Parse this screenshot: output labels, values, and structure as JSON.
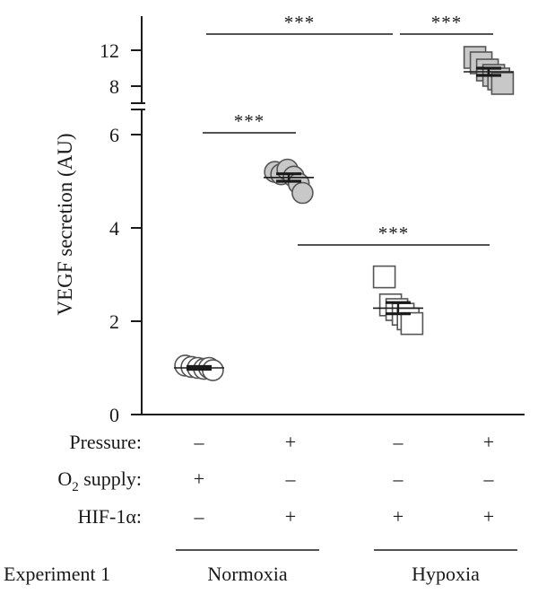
{
  "chart_data": {
    "type": "scatter",
    "ylabel": "VEGF secretion (AU)",
    "y_axis": {
      "broken": true,
      "lower_ticks": [
        "0",
        "2",
        "4",
        "6"
      ],
      "upper_ticks": [
        "8",
        "12"
      ],
      "lower_range": [
        0,
        6
      ],
      "upper_range": [
        7,
        13
      ]
    },
    "groups": [
      {
        "marker": "circle",
        "fill": "#ffffff",
        "points": [
          1.05,
          1.02,
          1.0,
          0.98,
          1.0,
          0.95
        ],
        "mean": 1.0,
        "error": 0.03
      },
      {
        "marker": "circle",
        "fill": "#c8c8c8",
        "points": [
          5.2,
          5.15,
          5.25,
          5.1,
          4.95,
          4.75
        ],
        "mean": 5.08,
        "error": 0.08
      },
      {
        "marker": "square",
        "fill": "#ffffff",
        "points": [
          2.95,
          2.35,
          2.25,
          2.15,
          2.05,
          1.95
        ],
        "mean": 2.28,
        "error": 0.12
      },
      {
        "marker": "square",
        "fill": "#c8c8c8",
        "points": [
          11.2,
          10.6,
          9.8,
          9.2,
          8.8,
          8.3
        ],
        "mean": 9.6,
        "error": 0.4
      }
    ],
    "significance": [
      {
        "from": 1,
        "to": 2,
        "label": "***",
        "level": 6.0
      },
      {
        "from": 2,
        "to": 4,
        "label": "***",
        "level": 3.6
      },
      {
        "from": 2,
        "to": 3,
        "label": "***",
        "level": 13.5
      },
      {
        "from": 3,
        "to": 4,
        "label": "***",
        "level": 13.5
      }
    ]
  },
  "conditions": {
    "rows": [
      {
        "label": "Pressure:",
        "values": [
          "–",
          "+",
          "–",
          "+"
        ]
      },
      {
        "label_main": "O",
        "label_sub": "2",
        "label_rest": " supply:",
        "values": [
          "+",
          "–",
          "–",
          "–"
        ]
      },
      {
        "label": "HIF-1α:",
        "values": [
          "–",
          "+",
          "+",
          "+"
        ]
      }
    ]
  },
  "experiment": {
    "label": "Experiment 1",
    "groups": [
      "Normoxia",
      "Hypoxia"
    ]
  }
}
